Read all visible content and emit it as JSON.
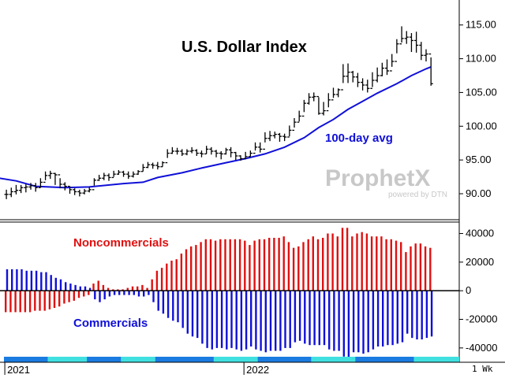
{
  "watermark": {
    "brand": "ProphetX",
    "sub": "powered by DTN"
  },
  "period_label": "1 Wk",
  "colors": {
    "price": "#000000",
    "avg": "#1010d8",
    "noncomm": "#e01010",
    "comm": "#1010d8",
    "band_a": "#1a7be0",
    "band_b": "#40e0e0"
  },
  "chart_data": [
    {
      "type": "line",
      "title": "U.S. Dollar Index",
      "annotations": [
        "100-day avg"
      ],
      "ylim": [
        86.5,
        118
      ],
      "yticks": [
        90,
        95,
        100,
        105,
        110,
        115
      ],
      "ytick_labels": [
        "90.00",
        "95.00",
        "100.00",
        "105.00",
        "110.00",
        "115.00"
      ],
      "xtick_labels": [
        "2021",
        "2022"
      ],
      "x_range_weeks": [
        -3,
        97
      ],
      "x_ticks_weeks": [
        0,
        49
      ],
      "series": [
        {
          "kind": "ohlc",
          "close": [
            89.9,
            90.3,
            90.5,
            90.9,
            91.0,
            91.2,
            90.9,
            91.7,
            92.7,
            93.0,
            92.8,
            91.4,
            91.1,
            90.6,
            90.3,
            90.1,
            90.4,
            90.6,
            92.0,
            92.3,
            92.7,
            92.4,
            92.9,
            93.2,
            92.9,
            92.6,
            92.9,
            93.3,
            93.9,
            94.3,
            94.2,
            94.0,
            94.6,
            96.0,
            96.3,
            96.3,
            95.9,
            96.3,
            96.4,
            96.0,
            95.9,
            96.6,
            96.3,
            96.0,
            95.9,
            96.5,
            96.1,
            95.6,
            95.2,
            95.5,
            96.0,
            96.9,
            96.6,
            98.2,
            98.6,
            98.8,
            98.5,
            98.4,
            99.4,
            100.6,
            101.5,
            103.4,
            104.3,
            104.4,
            101.9,
            102.3,
            103.9,
            104.7,
            105.4,
            107.4,
            108.0,
            107.3,
            106.5,
            106.1,
            105.6,
            106.8,
            107.5,
            108.6,
            108.2,
            109.6,
            112.2,
            113.0,
            113.2,
            112.7,
            112.0,
            110.5,
            110.7,
            106.3
          ],
          "high": [
            90.6,
            90.9,
            91.3,
            91.3,
            91.4,
            91.6,
            91.6,
            92.3,
            93.3,
            93.4,
            93.1,
            92.3,
            91.7,
            91.1,
            90.8,
            90.6,
            90.7,
            91.0,
            92.3,
            92.8,
            93.1,
            93.0,
            93.4,
            93.5,
            93.4,
            93.3,
            93.3,
            93.5,
            94.4,
            94.7,
            94.6,
            94.7,
            94.8,
            96.6,
            96.9,
            96.8,
            96.6,
            96.6,
            96.9,
            96.6,
            96.4,
            97.1,
            96.9,
            96.5,
            96.3,
            96.8,
            96.9,
            96.2,
            95.7,
            96.2,
            96.4,
            97.6,
            97.6,
            99.1,
            99.3,
            99.2,
            99.0,
            98.9,
            100.1,
            101.2,
            102.3,
            103.9,
            104.9,
            105.0,
            104.3,
            103.6,
            104.9,
            105.7,
            105.6,
            109.2,
            109.3,
            108.2,
            107.9,
            107.1,
            106.9,
            108.0,
            108.7,
            109.4,
            109.9,
            110.7,
            112.9,
            114.8,
            114.1,
            113.8,
            114.0,
            112.5,
            111.4,
            110.2
          ],
          "low": [
            89.2,
            89.5,
            89.9,
            90.1,
            90.2,
            90.6,
            90.3,
            90.9,
            92.0,
            92.2,
            91.3,
            90.8,
            90.5,
            90.0,
            89.8,
            89.6,
            89.9,
            90.2,
            91.2,
            91.9,
            92.0,
            91.9,
            92.5,
            92.8,
            92.5,
            92.2,
            92.4,
            92.8,
            93.3,
            93.8,
            93.7,
            93.6,
            94.0,
            95.3,
            95.9,
            95.8,
            95.6,
            95.7,
            96.0,
            95.6,
            95.4,
            95.9,
            95.8,
            95.4,
            95.1,
            95.8,
            95.4,
            95.0,
            94.9,
            95.1,
            95.5,
            96.4,
            96.1,
            97.6,
            97.8,
            98.2,
            97.7,
            97.8,
            98.5,
            99.8,
            100.7,
            102.1,
            103.2,
            103.7,
            101.7,
            101.6,
            102.8,
            104.2,
            104.3,
            106.4,
            106.4,
            106.5,
            105.8,
            105.3,
            105.0,
            105.8,
            106.5,
            107.4,
            107.6,
            108.8,
            110.8,
            112.4,
            112.2,
            111.0,
            110.9,
            109.8,
            109.6,
            106.0
          ]
        },
        {
          "name": "100-day avg",
          "kind": "line",
          "points": [
            [
              -3,
              92.5
            ],
            [
              2,
              91.9
            ],
            [
              6,
              91.1
            ],
            [
              12,
              90.9
            ],
            [
              17,
              91.0
            ],
            [
              24,
              91.5
            ],
            [
              28,
              91.7
            ],
            [
              31,
              92.4
            ],
            [
              36,
              93.1
            ],
            [
              40,
              93.8
            ],
            [
              45,
              94.6
            ],
            [
              49,
              95.2
            ],
            [
              53,
              95.9
            ],
            [
              57,
              96.9
            ],
            [
              61,
              98.3
            ],
            [
              64,
              99.8
            ],
            [
              67,
              101.0
            ],
            [
              70,
              102.5
            ],
            [
              73,
              103.7
            ],
            [
              76,
              104.9
            ],
            [
              80,
              106.3
            ],
            [
              83,
              107.5
            ],
            [
              86,
              108.5
            ],
            [
              87,
              108.8
            ]
          ]
        }
      ]
    },
    {
      "type": "bar",
      "yticks": [
        -40000,
        -20000,
        0,
        20000,
        40000
      ],
      "ytick_labels": [
        "-40000",
        "-20000",
        "0",
        "20000",
        "40000"
      ],
      "ylim": [
        -50000,
        48000
      ],
      "annotations": [
        "Noncommercials",
        "Commercials"
      ],
      "series": [
        {
          "name": "Noncommercials",
          "values": [
            -15000,
            -15000,
            -15000,
            -15000,
            -15000,
            -15000,
            -14000,
            -14000,
            -14000,
            -13000,
            -12000,
            -11000,
            -9000,
            -8000,
            -7000,
            -5000,
            -4000,
            -3000,
            5000,
            7000,
            4000,
            2000,
            1000,
            1000,
            1000,
            2000,
            3000,
            3000,
            4000,
            2000,
            8000,
            14000,
            16000,
            19000,
            21000,
            22000,
            26000,
            29000,
            31000,
            32000,
            34000,
            36000,
            36000,
            35000,
            36000,
            36000,
            36000,
            36000,
            36000,
            35000,
            32000,
            35000,
            36000,
            36000,
            37000,
            37000,
            37000,
            38000,
            34000,
            30000,
            31000,
            34000,
            36000,
            38000,
            36000,
            37000,
            40000,
            40000,
            38000,
            44000,
            44000,
            38000,
            40000,
            41000,
            40000,
            38000,
            38000,
            38000,
            36000,
            36000,
            35000,
            34000,
            27000,
            31000,
            33000,
            33000,
            31000,
            30000
          ],
          "color": "#e01010"
        },
        {
          "name": "Commercials",
          "values": [
            15000,
            15000,
            15000,
            15000,
            14000,
            14000,
            14000,
            13000,
            13000,
            11000,
            9000,
            8000,
            6000,
            5000,
            4000,
            3000,
            3000,
            2000,
            -6000,
            -8000,
            -6000,
            -4000,
            -3000,
            -3000,
            -3000,
            -3000,
            -3000,
            -4000,
            -4000,
            -3000,
            -8000,
            -14000,
            -16000,
            -19000,
            -21000,
            -22000,
            -26000,
            -30000,
            -32000,
            -33000,
            -37000,
            -40000,
            -41000,
            -40000,
            -40000,
            -41000,
            -40000,
            -41000,
            -42000,
            -41000,
            -39000,
            -41000,
            -42000,
            -43000,
            -42000,
            -42000,
            -42000,
            -40000,
            -40000,
            -36000,
            -35000,
            -37000,
            -38000,
            -38000,
            -38000,
            -38000,
            -41000,
            -42000,
            -42000,
            -46000,
            -47000,
            -43000,
            -43000,
            -44000,
            -43000,
            -41000,
            -39000,
            -39000,
            -38000,
            -38000,
            -37000,
            -36000,
            -30000,
            -33000,
            -34000,
            -34000,
            -33000,
            -32000
          ],
          "color": "#1010d8"
        }
      ]
    }
  ]
}
